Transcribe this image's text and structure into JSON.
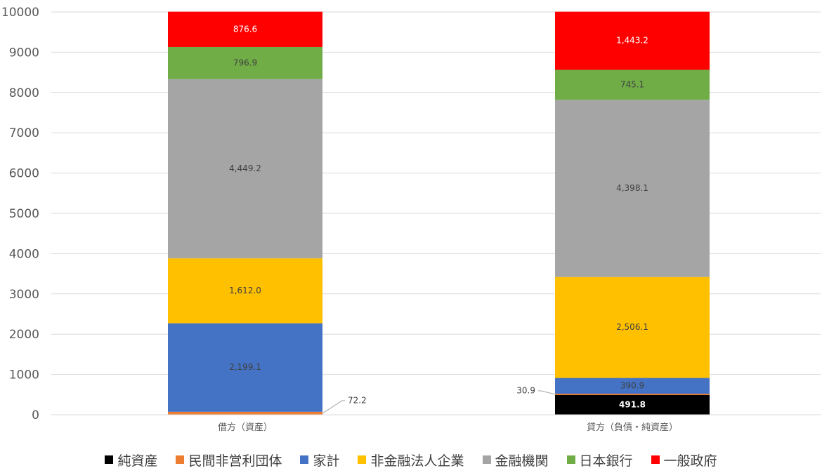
{
  "chart_data": {
    "type": "bar",
    "stacked": true,
    "categories": [
      "借方（資産）",
      "貸方（負債・純資産）"
    ],
    "series": [
      {
        "name": "純資産",
        "color": "#000000",
        "values": [
          0,
          491.8
        ],
        "labels": [
          "",
          "491.8"
        ]
      },
      {
        "name": "民間非営利団体",
        "color": "#ED7D31",
        "values": [
          72.2,
          30.9
        ],
        "labels": [
          "72.2",
          "30.9"
        ]
      },
      {
        "name": "家計",
        "color": "#4472C4",
        "values": [
          2199.1,
          390.9
        ],
        "labels": [
          "2,199.1",
          "390.9"
        ]
      },
      {
        "name": "非金融法人企業",
        "color": "#FFC000",
        "values": [
          1612.0,
          2506.1
        ],
        "labels": [
          "1,612.0",
          "2,506.1"
        ]
      },
      {
        "name": "金融機関",
        "color": "#A5A5A5",
        "values": [
          4449.2,
          4398.1
        ],
        "labels": [
          "4,449.2",
          "4,398.1"
        ]
      },
      {
        "name": "日本銀行",
        "color": "#70AD47",
        "values": [
          796.9,
          745.1
        ],
        "labels": [
          "796.9",
          "745.1"
        ]
      },
      {
        "name": "一般政府",
        "color": "#FF0000",
        "values": [
          876.6,
          1443.2
        ],
        "labels": [
          "876.6",
          "1,443.2"
        ]
      }
    ],
    "ylim": [
      0,
      10000
    ],
    "yticks": [
      "0",
      "1000",
      "2000",
      "3000",
      "4000",
      "5000",
      "6000",
      "7000",
      "8000",
      "9000",
      "10000"
    ],
    "grid": true,
    "legend_position": "bottom"
  }
}
